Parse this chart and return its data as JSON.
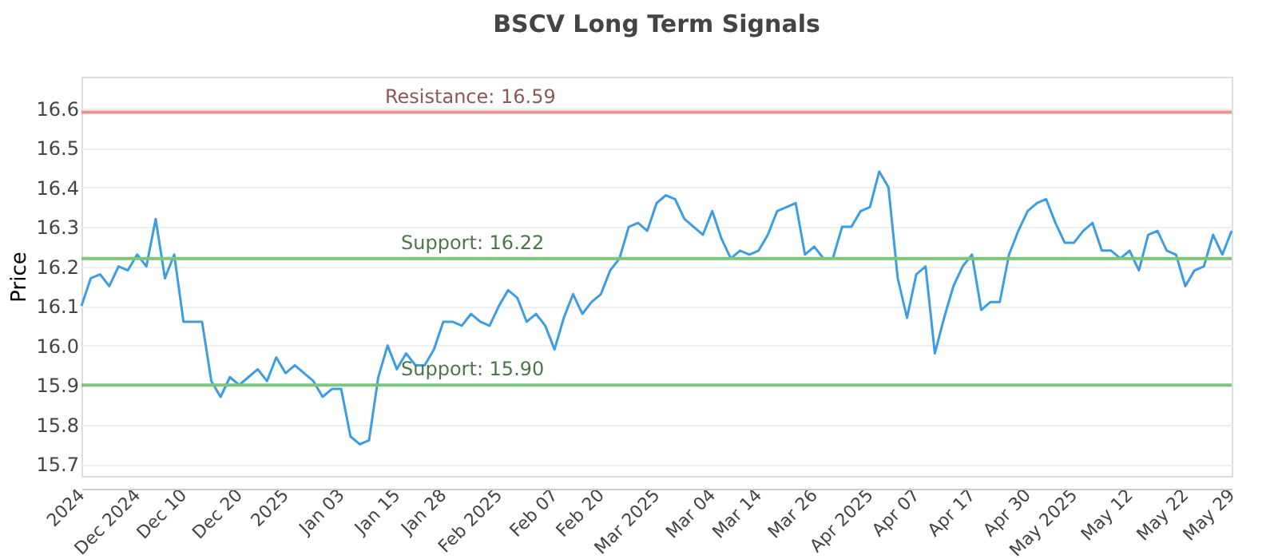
{
  "chart_data": {
    "type": "line",
    "title": "BSCV Long Term Signals",
    "ylabel": "Price",
    "categories": [
      "2024",
      null,
      null,
      null,
      null,
      null,
      "Dec 2024",
      null,
      null,
      null,
      null,
      "Dec 10",
      null,
      null,
      null,
      null,
      null,
      "Dec 20",
      null,
      null,
      null,
      null,
      "2025",
      null,
      null,
      null,
      null,
      null,
      "Jan 03",
      null,
      null,
      null,
      null,
      null,
      "Jan 15",
      null,
      null,
      null,
      null,
      "Jan 28",
      null,
      null,
      null,
      null,
      null,
      "Feb 2025",
      null,
      null,
      null,
      null,
      null,
      "Feb 07",
      null,
      null,
      null,
      null,
      "Feb 20",
      null,
      null,
      null,
      null,
      null,
      "Mar 2025",
      null,
      null,
      null,
      null,
      null,
      "Mar 04",
      null,
      null,
      null,
      null,
      "Mar 14",
      null,
      null,
      null,
      null,
      null,
      "Mar 26",
      null,
      null,
      null,
      null,
      null,
      "Apr 2025",
      null,
      null,
      null,
      null,
      "Apr 07",
      null,
      null,
      null,
      null,
      null,
      "Apr 17",
      null,
      null,
      null,
      null,
      null,
      "Apr 30",
      null,
      null,
      null,
      null,
      "May 2025",
      null,
      null,
      null,
      null,
      null,
      "May 12",
      null,
      null,
      null,
      null,
      null,
      "May 22",
      null,
      null,
      null,
      null,
      "May 29"
    ],
    "series": [
      {
        "color": "#3d9de3",
        "values": [
          16.1,
          16.17,
          16.18,
          16.15,
          16.2,
          16.19,
          16.23,
          16.2,
          16.32,
          16.17,
          16.23,
          16.06,
          16.06,
          16.06,
          15.91,
          15.87,
          15.92,
          15.9,
          15.92,
          15.94,
          15.91,
          15.97,
          15.93,
          15.95,
          15.93,
          15.91,
          15.87,
          15.89,
          15.89,
          15.77,
          15.75,
          15.76,
          15.92,
          16.0,
          15.94,
          15.98,
          15.95,
          15.95,
          15.99,
          16.06,
          16.06,
          16.05,
          16.08,
          16.06,
          16.05,
          16.1,
          16.14,
          16.12,
          16.06,
          16.08,
          16.05,
          15.99,
          16.07,
          16.13,
          16.08,
          16.11,
          16.13,
          16.19,
          16.22,
          16.3,
          16.31,
          16.29,
          16.36,
          16.38,
          16.37,
          16.32,
          16.3,
          16.28,
          16.34,
          16.27,
          16.22,
          16.24,
          16.23,
          16.24,
          16.28,
          16.34,
          16.35,
          16.36,
          16.23,
          16.25,
          16.22,
          16.22,
          16.3,
          16.3,
          16.34,
          16.35,
          16.44,
          16.4,
          16.17,
          16.07,
          16.18,
          16.2,
          15.98,
          16.07,
          16.15,
          16.2,
          16.23,
          16.09,
          16.11,
          16.11,
          16.23,
          16.29,
          16.34,
          16.36,
          16.37,
          16.31,
          16.26,
          16.26,
          16.29,
          16.31,
          16.24,
          16.24,
          16.22,
          16.24,
          16.19,
          16.28,
          16.29,
          16.24,
          16.23,
          16.15,
          16.19,
          16.2,
          16.28,
          16.23,
          16.29
        ]
      }
    ],
    "ylim": [
      15.67,
      16.68
    ],
    "yticks": [
      15.7,
      15.8,
      15.9,
      {
        "value": 16.0,
        "label": "16.0"
      },
      16.1,
      16.2,
      16.3,
      16.4,
      16.5,
      16.6
    ],
    "grid": "y",
    "marker": "none",
    "line_style": "solid",
    "ref_lines": [
      {
        "axis": "y",
        "value": 16.59,
        "label": "Resistance: 16.59",
        "color": "#e8938f"
      },
      {
        "axis": "y",
        "value": 16.22,
        "label": "Support: 16.22",
        "color": "#7cc67c"
      },
      {
        "axis": "y",
        "value": 15.9,
        "label": "Support: 15.90",
        "color": "#7cc67c"
      }
    ]
  }
}
